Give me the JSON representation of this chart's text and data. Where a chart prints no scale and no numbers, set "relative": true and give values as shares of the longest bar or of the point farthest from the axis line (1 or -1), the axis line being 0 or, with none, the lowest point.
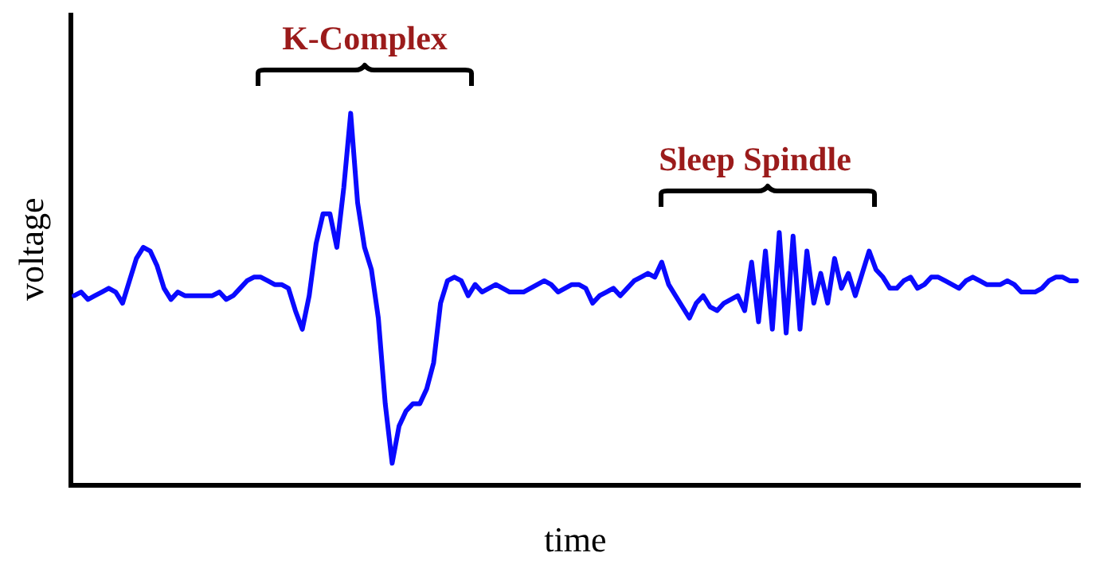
{
  "chart_data": {
    "type": "line",
    "relative": true,
    "xlabel": "time",
    "ylabel": "voltage",
    "annotations": [
      "K-Complex",
      "Sleep Spindle"
    ],
    "grid": false,
    "marker": "none",
    "line_style": "solid",
    "categories": [
      null,
      null,
      null,
      null,
      null,
      null,
      null,
      null,
      null,
      null,
      null,
      null,
      null,
      null,
      null,
      null,
      null,
      null,
      null,
      null,
      null,
      null,
      null,
      null,
      null,
      null,
      null,
      null,
      null,
      null,
      null,
      null,
      null,
      null,
      null,
      null,
      null,
      null,
      null,
      null,
      null,
      null,
      null,
      null,
      null,
      null,
      null,
      null,
      null,
      null,
      null,
      null,
      null,
      null,
      null,
      null,
      null,
      null,
      null,
      null,
      null,
      null,
      null,
      null,
      null,
      null,
      null,
      null,
      null,
      null,
      null,
      null,
      null,
      null,
      null,
      null,
      null,
      null,
      null,
      null,
      null,
      null,
      null,
      null,
      null,
      null,
      null,
      null,
      null,
      null,
      null,
      null,
      null,
      null,
      null,
      null,
      null,
      null,
      null,
      null,
      null,
      null,
      null,
      null,
      null,
      null,
      null,
      null,
      null,
      null,
      null,
      null,
      null,
      null,
      null,
      null,
      null,
      null,
      null,
      null,
      null,
      null,
      null,
      null,
      null,
      null,
      null,
      null,
      null,
      null,
      null,
      null,
      null,
      null,
      null,
      null,
      null,
      null,
      null,
      null,
      null,
      null,
      null,
      null,
      null,
      null
    ],
    "series": [
      {
        "color": "#0a0aff",
        "values": [
          0.51,
          0.52,
          0.5,
          0.51,
          0.52,
          0.53,
          0.52,
          0.49,
          0.55,
          0.61,
          0.64,
          0.63,
          0.59,
          0.53,
          0.5,
          0.52,
          0.51,
          0.51,
          0.51,
          0.51,
          0.51,
          0.52,
          0.5,
          0.51,
          0.53,
          0.55,
          0.56,
          0.56,
          0.55,
          0.54,
          0.54,
          0.53,
          0.47,
          0.42,
          0.51,
          0.65,
          0.73,
          0.73,
          0.64,
          0.8,
          1.0,
          0.76,
          0.64,
          0.58,
          0.45,
          0.22,
          0.06,
          0.16,
          0.2,
          0.22,
          0.22,
          0.26,
          0.33,
          0.49,
          0.55,
          0.56,
          0.55,
          0.51,
          0.54,
          0.52,
          0.53,
          0.54,
          0.53,
          0.52,
          0.52,
          0.52,
          0.53,
          0.54,
          0.55,
          0.54,
          0.52,
          0.53,
          0.54,
          0.54,
          0.53,
          0.49,
          0.51,
          0.52,
          0.53,
          0.51,
          0.53,
          0.55,
          0.56,
          0.57,
          0.56,
          0.6,
          0.54,
          0.51,
          0.48,
          0.45,
          0.49,
          0.51,
          0.48,
          0.47,
          0.49,
          0.5,
          0.51,
          0.47,
          0.6,
          0.44,
          0.63,
          0.42,
          0.68,
          0.41,
          0.67,
          0.42,
          0.63,
          0.49,
          0.57,
          0.49,
          0.61,
          0.53,
          0.57,
          0.51,
          0.57,
          0.63,
          0.58,
          0.56,
          0.53,
          0.53,
          0.55,
          0.56,
          0.53,
          0.54,
          0.56,
          0.56,
          0.55,
          0.54,
          0.53,
          0.55,
          0.56,
          0.55,
          0.54,
          0.54,
          0.54,
          0.55,
          0.54,
          0.52,
          0.52,
          0.52,
          0.53,
          0.55,
          0.56,
          0.56,
          0.55,
          0.55
        ]
      }
    ]
  }
}
